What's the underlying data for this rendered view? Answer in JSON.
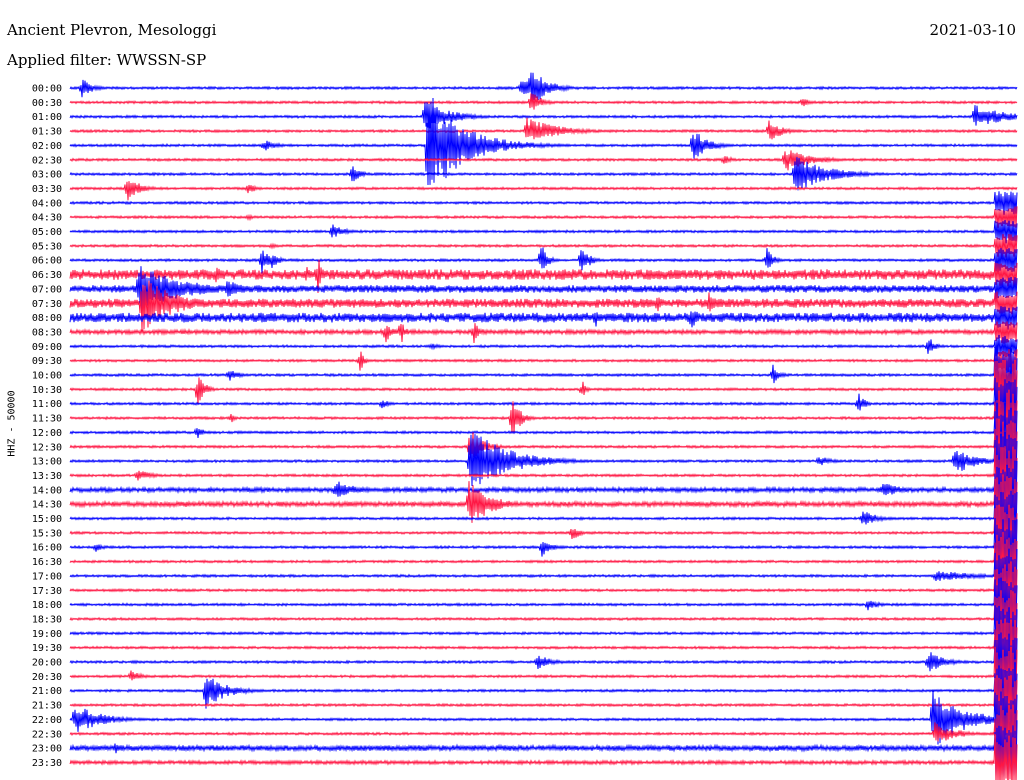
{
  "header": {
    "station": "Ancient Plevron, Mesologgi",
    "date": "2021-03-10",
    "filter_label": "Applied filter: WWSSN-SP"
  },
  "chart_data": {
    "type": "line",
    "title": "Ancient Plevron, Mesologgi",
    "ylabel": "HHZ - 50000",
    "row_labels": [
      "00:00",
      "00:30",
      "01:00",
      "01:30",
      "02:00",
      "02:30",
      "03:00",
      "03:30",
      "04:00",
      "04:30",
      "05:00",
      "05:30",
      "06:00",
      "06:30",
      "07:00",
      "07:30",
      "08:00",
      "08:30",
      "09:00",
      "09:30",
      "10:00",
      "10:30",
      "11:00",
      "11:30",
      "12:00",
      "12:30",
      "13:00",
      "13:30",
      "14:00",
      "14:30",
      "15:00",
      "15:30",
      "16:00",
      "16:30",
      "17:00",
      "17:30",
      "18:00",
      "18:30",
      "19:00",
      "19:30",
      "20:00",
      "20:30",
      "21:00",
      "21:30",
      "22:00",
      "22:30",
      "23:00",
      "23:30"
    ],
    "series_colors": [
      "#0000ff",
      "#ff1744"
    ],
    "grid": false
  }
}
